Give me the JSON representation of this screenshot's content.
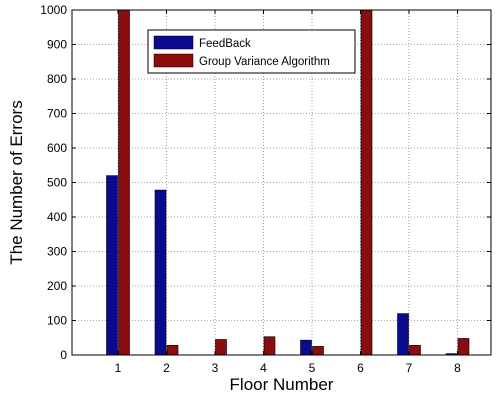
{
  "chart_data": {
    "type": "bar",
    "title": "",
    "xlabel": "Floor Number",
    "ylabel": "The Number of Errors",
    "categories": [
      "1",
      "2",
      "3",
      "4",
      "5",
      "6",
      "7",
      "8"
    ],
    "ylim": [
      0,
      1000
    ],
    "yticks": [
      "0",
      "100",
      "200",
      "300",
      "400",
      "500",
      "600",
      "700",
      "800",
      "900",
      "1000"
    ],
    "grid": true,
    "legend_position": "top",
    "series": [
      {
        "name": "FeedBack",
        "color": "#0a0a8f",
        "values": [
          520,
          478,
          0,
          0,
          43,
          0,
          120,
          4
        ]
      },
      {
        "name": "Group Variance Algorithm",
        "color": "#8b0c0c",
        "values": [
          1000,
          28,
          45,
          53,
          25,
          1000,
          28,
          48
        ]
      }
    ]
  }
}
